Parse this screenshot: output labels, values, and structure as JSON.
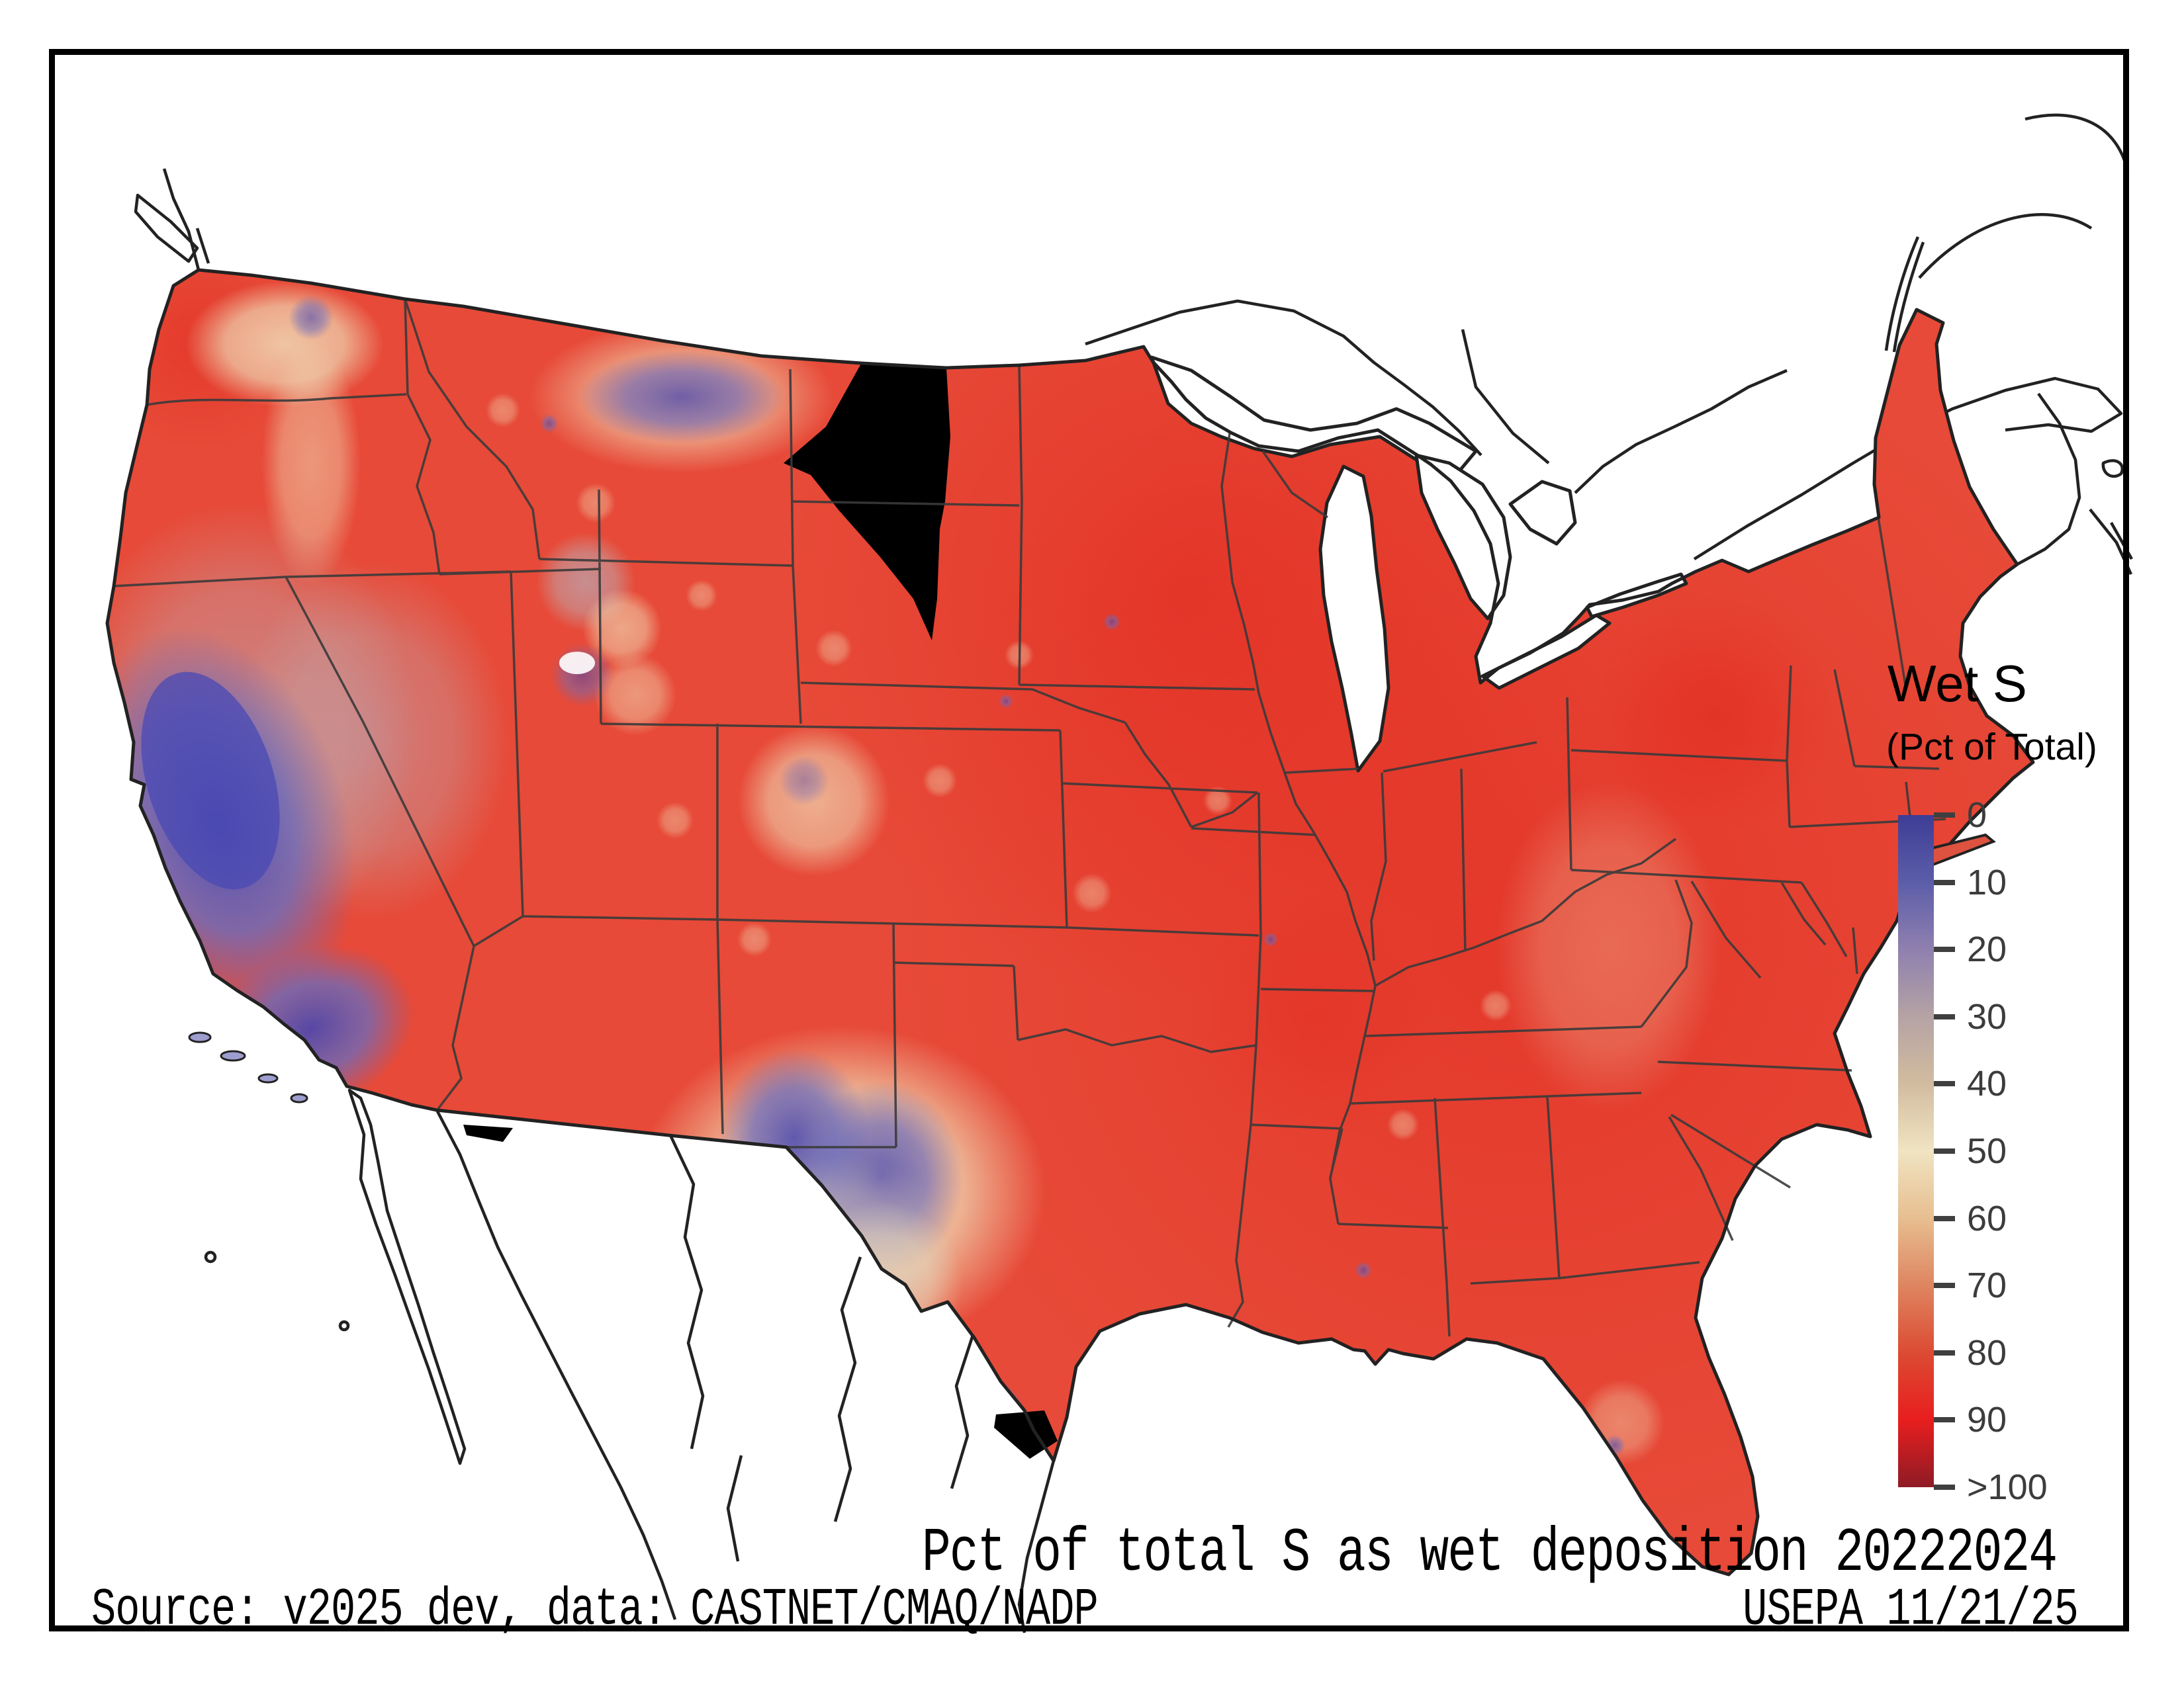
{
  "figure": {
    "legend": {
      "title": "Wet S",
      "subtitle": "(Pct of Total)",
      "ticks": [
        "0",
        "10",
        "20",
        "30",
        "40",
        "50",
        "60",
        "70",
        "80",
        "90",
        ">100"
      ]
    },
    "caption": "Pct of total S as wet deposition 20222024",
    "source_line": "Source: v2025_dev, data: CASTNET/CMAQ/NADP",
    "agency_stamp": "USEPA 11/21/25"
  },
  "chart_data": {
    "type": "heatmap",
    "title": "Pct of total S as wet deposition 20222024",
    "variable": "Wet S",
    "units": "percent of total sulfur deposition",
    "period_label": "20222024",
    "geography": "contiguous United States, gridded (CMAQ ~12km raster) with state boundaries; Canada and Mexico shown as unfilled outlines",
    "legend_orientation": "vertical colorbar, 0 at top, >100 at bottom",
    "colormap": [
      {
        "value": "0",
        "color": "#3D3D95"
      },
      {
        "value": "10",
        "color": "#5C5DA9"
      },
      {
        "value": "20",
        "color": "#8F80AF"
      },
      {
        "value": "30",
        "color": "#B5A3A4"
      },
      {
        "value": "40",
        "color": "#D2BC9F"
      },
      {
        "value": "50",
        "color": "#F0E4C2"
      },
      {
        "value": "60",
        "color": "#E7BE90"
      },
      {
        "value": "70",
        "color": "#DE8560"
      },
      {
        "value": "80",
        "color": "#DC4B33"
      },
      {
        "value": "90",
        "color": "#E81E1E"
      },
      {
        "value": ">100",
        "color": "#8E1B25"
      }
    ],
    "no_data_color": "#000000",
    "regions": [
      {
        "region": "Eastern US (Midwest, South, Northeast)",
        "approx_value_pct": "75-95"
      },
      {
        "region": "Upper Midwest (MN/WI/MI) and upstate New York",
        "approx_value_pct": "85-95"
      },
      {
        "region": "Great Plains (NE/KS/OK/TX east)",
        "approx_value_pct": "80-90"
      },
      {
        "region": "Pacific Northwest coast (WA/OR)",
        "approx_value_pct": "70-90 with cream patches 40-60"
      },
      {
        "region": "Northern Washington interior",
        "approx_value_pct": "30-60"
      },
      {
        "region": "Central and Southern California (Central Valley, Sierra, SoCal)",
        "approx_value_pct": "0-30"
      },
      {
        "region": "Western Nevada / Great Basin edge",
        "approx_value_pct": "30-60"
      },
      {
        "region": "Northern Montana near Canadian border",
        "approx_value_pct": "10-40"
      },
      {
        "region": "Yellowstone / Wind River (WY) spots",
        "approx_value_pct": "30-50"
      },
      {
        "region": "Colorado Rockies patches",
        "approx_value_pct": "40-60"
      },
      {
        "region": "Southern New Mexico / far west Texas (Guadalupe-Sacramento mtns)",
        "approx_value_pct": "10-40 core, 40-60 halo"
      },
      {
        "region": "Big Bend Texas",
        "approx_value_pct": "40-60"
      },
      {
        "region": "South Texas near Rio Grande Valley spot",
        "approx_value_pct": "10-30"
      },
      {
        "region": "Florida peninsula",
        "approx_value_pct": "70-90 with 50-60 speckles"
      }
    ],
    "no_data_regions": [
      "eastern Montana / western North and South Dakota wedge",
      "southern tip of Texas (Rio Grande Valley)",
      "small sliver on Arizona-New Mexico border at the Mexico line"
    ]
  },
  "colors": {
    "background": "#FFFFFF",
    "frame": "#000000",
    "coastline": "#222222",
    "state_lines": "#3A3A3A",
    "base_red": "#E74A38",
    "tick_mark": "#3F3F3F",
    "tick_label": "#3C3C3C",
    "text": "#000000"
  }
}
